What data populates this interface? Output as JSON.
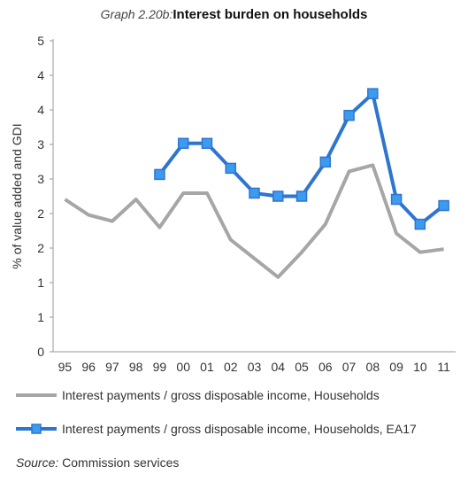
{
  "chart_data": {
    "type": "line",
    "title_prefix": "Graph 2.20b:",
    "title": "Interest burden on households",
    "ylabel": "% of value added and GDI",
    "xlabel": "",
    "y_tick_labels": [
      "0",
      "1",
      "1",
      "2",
      "2",
      "3",
      "3",
      "4",
      "4",
      "5"
    ],
    "ylim": [
      0,
      5
    ],
    "categories": [
      "95",
      "96",
      "97",
      "98",
      "99",
      "00",
      "01",
      "02",
      "03",
      "04",
      "05",
      "06",
      "07",
      "08",
      "09",
      "10",
      "11"
    ],
    "series": [
      {
        "name": "Interest payments / gross disposable income, Households",
        "color": "#a6a6a6",
        "marker": "none",
        "values": [
          2.45,
          2.2,
          2.1,
          2.45,
          2.0,
          2.55,
          2.55,
          1.8,
          1.5,
          1.2,
          1.6,
          2.05,
          2.9,
          3.0,
          1.9,
          1.6,
          1.65
        ]
      },
      {
        "name": "Interest payments / gross disposable income, Households, EA17",
        "color": "#2e75d0",
        "marker": "square",
        "marker_color": "#3d9bef",
        "values": [
          null,
          null,
          null,
          null,
          2.85,
          3.35,
          3.35,
          2.95,
          2.55,
          2.5,
          2.5,
          3.05,
          3.8,
          4.15,
          2.45,
          2.05,
          2.35
        ]
      }
    ],
    "grid": false,
    "legend_position": "bottom"
  },
  "legend": {
    "item1": "Interest payments / gross disposable income, Households",
    "item2": "Interest payments / gross disposable income, Households, EA17"
  },
  "source": {
    "label": "Source:",
    "text": "Commission services"
  }
}
